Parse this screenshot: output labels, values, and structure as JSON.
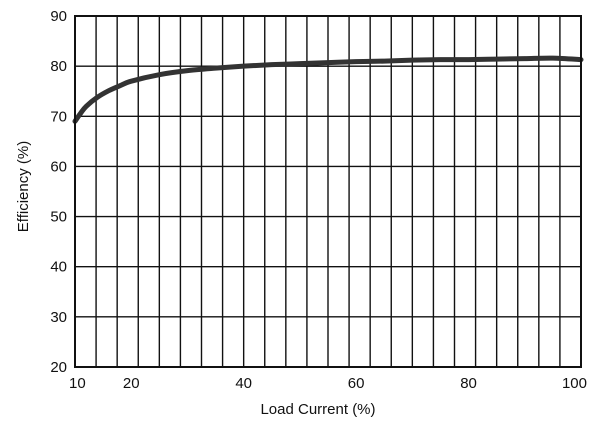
{
  "chart_data": {
    "type": "line",
    "title": "",
    "xlabel": "Load Current (%)",
    "ylabel": "Efficiency (%)",
    "xlim": [
      10,
      100
    ],
    "ylim": [
      20,
      90
    ],
    "x_ticks": [
      10,
      20,
      40,
      60,
      80,
      100
    ],
    "y_ticks": [
      20,
      30,
      40,
      50,
      60,
      70,
      80,
      90
    ],
    "x_grid_values": [
      10,
      13.75,
      17.5,
      21.25,
      25,
      28.75,
      32.5,
      36.25,
      40,
      43.75,
      47.5,
      51.25,
      55,
      58.75,
      62.5,
      66.25,
      70,
      73.75,
      77.5,
      81.25,
      85,
      88.75,
      92.5,
      96.25,
      100
    ],
    "grid": true,
    "legend": "none",
    "line_color": "#333333",
    "series": [
      {
        "x": [
          10,
          11,
          12,
          14,
          16,
          18,
          20,
          25,
          30,
          35,
          40,
          45,
          50,
          55,
          60,
          65,
          70,
          75,
          80,
          85,
          90,
          95,
          100
        ],
        "values": [
          69.0,
          70.6,
          72.0,
          73.8,
          75.1,
          76.1,
          77.0,
          78.3,
          79.1,
          79.6,
          80.0,
          80.3,
          80.5,
          80.7,
          80.9,
          81.0,
          81.2,
          81.3,
          81.3,
          81.4,
          81.5,
          81.6,
          81.3
        ]
      }
    ]
  }
}
